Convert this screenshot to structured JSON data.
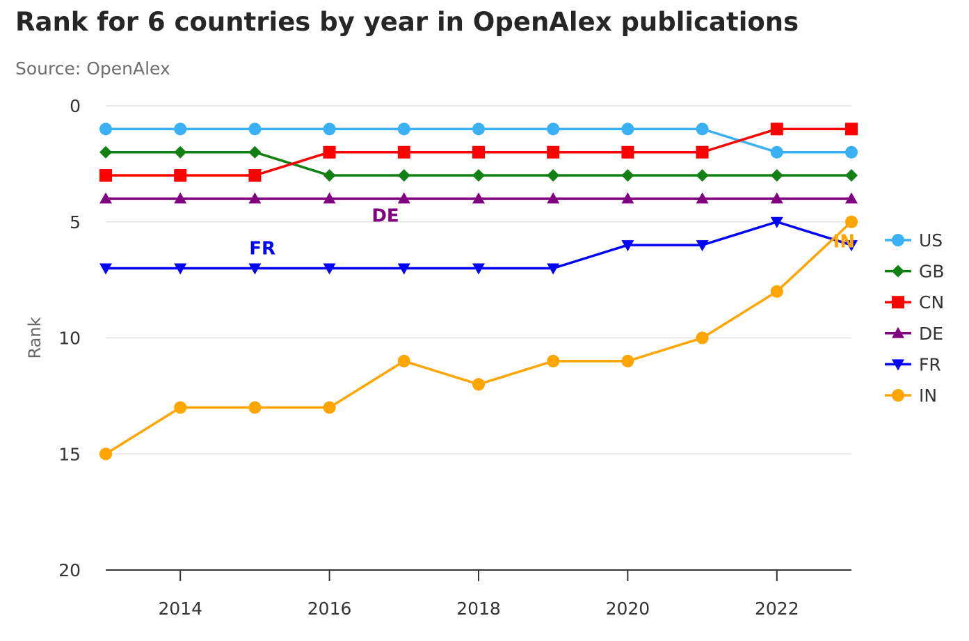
{
  "chart_data": {
    "type": "line",
    "title": "Rank for 6 countries by year in OpenAlex publications",
    "subtitle": "Source: OpenAlex",
    "xlabel": "",
    "ylabel": "Rank",
    "x": [
      2013,
      2014,
      2015,
      2016,
      2017,
      2018,
      2019,
      2020,
      2021,
      2022,
      2023
    ],
    "xlim": [
      2013,
      2023
    ],
    "xticks": [
      2014,
      2016,
      2018,
      2020,
      2022
    ],
    "ylim": [
      0,
      20
    ],
    "y_reversed": true,
    "yticks": [
      0,
      5,
      10,
      15,
      20
    ],
    "grid": "horizontal",
    "legend_position": "right",
    "series": [
      {
        "name": "US",
        "color": "#3ab0f5",
        "marker": "circle",
        "values": [
          1,
          1,
          1,
          1,
          1,
          1,
          1,
          1,
          1,
          2,
          2
        ]
      },
      {
        "name": "GB",
        "color": "#128012",
        "marker": "diamond",
        "values": [
          2,
          2,
          2,
          3,
          3,
          3,
          3,
          3,
          3,
          3,
          3
        ]
      },
      {
        "name": "CN",
        "color": "#ff0000",
        "marker": "square",
        "values": [
          3,
          3,
          3,
          2,
          2,
          2,
          2,
          2,
          2,
          1,
          1
        ]
      },
      {
        "name": "DE",
        "color": "#800080",
        "marker": "triangle",
        "values": [
          4,
          4,
          4,
          4,
          4,
          4,
          4,
          4,
          4,
          4,
          4
        ]
      },
      {
        "name": "FR",
        "color": "#0000ff",
        "marker": "triangle-down",
        "values": [
          7,
          7,
          7,
          7,
          7,
          7,
          7,
          6,
          6,
          5,
          6
        ]
      },
      {
        "name": "IN",
        "color": "#ffa500",
        "marker": "circle",
        "values": [
          15,
          13,
          13,
          13,
          11,
          12,
          11,
          11,
          10,
          8,
          5
        ]
      }
    ],
    "annotations": [
      {
        "text": "DE",
        "series": "DE",
        "x": 2016.75,
        "y": 4.7,
        "color": "#800080"
      },
      {
        "text": "FR",
        "series": "FR",
        "x": 2015.1,
        "y": 6.1,
        "color": "#0000ff"
      },
      {
        "text": "IN",
        "series": "IN",
        "x": 2022.9,
        "y": 5.8,
        "color": "#ffa500"
      }
    ]
  }
}
